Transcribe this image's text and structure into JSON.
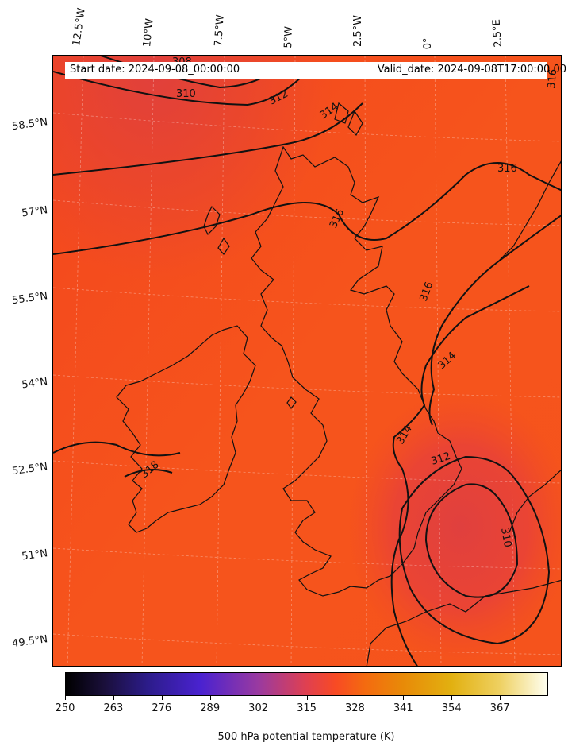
{
  "header": {
    "start_date": "Start date: 2024-09-08_00:00:00",
    "valid_date": "Valid_date: 2024-09-08T17:00:00.00"
  },
  "axes": {
    "lon_labels": [
      "12.5°W",
      "10°W",
      "7.5°W",
      "5°W",
      "2.5°W",
      "0°",
      "2.5°E"
    ],
    "lat_labels": [
      "58.5°N",
      "57°N",
      "55.5°N",
      "54°N",
      "52.5°N",
      "51°N",
      "49.5°N"
    ]
  },
  "contour_labels": [
    "308",
    "310",
    "312",
    "314",
    "316",
    "316",
    "316",
    "316",
    "314",
    "314",
    "312",
    "310",
    "318"
  ],
  "colorbar": {
    "ticks": [
      "250",
      "263",
      "276",
      "289",
      "302",
      "315",
      "328",
      "341",
      "354",
      "367"
    ],
    "label": "500 hPa potential temperature (K)"
  },
  "colors": {
    "field_base": "#f6521e",
    "field_cool": "#e4443c",
    "coast": "#111111"
  }
}
